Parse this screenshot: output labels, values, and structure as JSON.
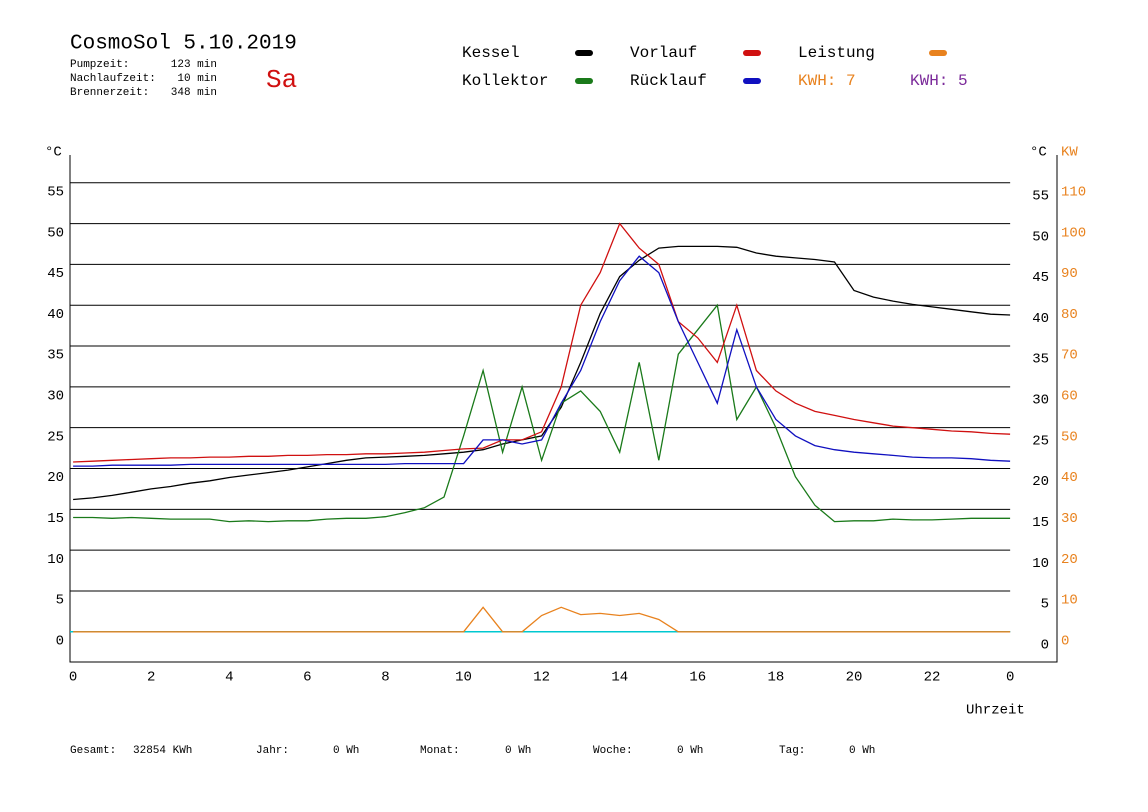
{
  "header": {
    "title": "CosmoSol 5.10.2019",
    "day": "Sa",
    "stats": [
      {
        "label": "Pumpzeit:",
        "value": "123 min"
      },
      {
        "label": "Nachlaufzeit:",
        "value": "10 min"
      },
      {
        "label": "Brennerzeit:",
        "value": "348 min"
      }
    ]
  },
  "chart_data": {
    "type": "line",
    "ylabel": "°C",
    "y2label_left": "°C",
    "y2label": "KW",
    "xlabel": "Uhrzeit",
    "annotations": [
      {
        "text": "KWH: 7",
        "color": "#e8821e"
      },
      {
        "text": "KWH: 5",
        "color": "#7b2a9a"
      }
    ],
    "x": [
      0,
      0.5,
      1,
      1.5,
      2,
      2.5,
      3,
      3.5,
      4,
      4.5,
      5,
      5.5,
      6,
      6.5,
      7,
      7.5,
      8,
      8.5,
      9,
      9.5,
      10,
      10.5,
      11,
      11.5,
      12,
      12.5,
      13,
      13.5,
      14,
      14.5,
      15,
      15.5,
      16,
      16.5,
      17,
      17.5,
      18,
      18.5,
      19,
      19.5,
      20,
      20.5,
      21,
      21.5,
      22,
      22.5,
      23,
      23.5,
      24
    ],
    "xlim": [
      -0.08,
      25.2
    ],
    "xticks": [
      0,
      2,
      4,
      6,
      8,
      10,
      12,
      14,
      16,
      18,
      20,
      22,
      {
        "value": 24,
        "label": "0"
      }
    ],
    "ylim": [
      -3.7,
      58.4
    ],
    "yticks": [
      0,
      5,
      10,
      15,
      20,
      25,
      30,
      35,
      40,
      45,
      50,
      55
    ],
    "y2lim": [
      -7.4,
      116.8
    ],
    "y2ticks": [
      0,
      10,
      20,
      30,
      40,
      50,
      60,
      70,
      80,
      90,
      100,
      110
    ],
    "grid": true,
    "series": [
      {
        "name": "Kessel",
        "color": "#000000",
        "values": [
          16.2,
          16.4,
          16.7,
          17.1,
          17.5,
          17.8,
          18.2,
          18.5,
          18.9,
          19.2,
          19.5,
          19.8,
          20.2,
          20.6,
          21.0,
          21.3,
          21.4,
          21.5,
          21.6,
          21.8,
          22.0,
          22.3,
          23.0,
          23.5,
          24.0,
          27.5,
          33.0,
          39.0,
          43.5,
          45.5,
          47.0,
          47.2,
          47.2,
          47.2,
          47.1,
          46.4,
          46.0,
          45.8,
          45.6,
          45.3,
          41.8,
          41.0,
          40.5,
          40.1,
          39.8,
          39.5,
          39.2,
          38.9,
          38.8
        ]
      },
      {
        "name": "Kollektor",
        "color": "#1a7a1a",
        "values": [
          14.0,
          14.0,
          13.9,
          14.0,
          13.9,
          13.8,
          13.8,
          13.8,
          13.5,
          13.6,
          13.5,
          13.6,
          13.6,
          13.8,
          13.9,
          13.9,
          14.1,
          14.6,
          15.2,
          16.5,
          24.0,
          32.0,
          22.0,
          30.0,
          21.0,
          28.0,
          29.5,
          27.0,
          22.0,
          33.0,
          21.0,
          34.0,
          37.0,
          40.0,
          26.0,
          30.0,
          25.0,
          19.0,
          15.5,
          13.5,
          13.6,
          13.6,
          13.8,
          13.7,
          13.7,
          13.8,
          13.9,
          13.9,
          13.9
        ]
      },
      {
        "name": "Vorlauf",
        "color": "#d01010",
        "values": [
          20.8,
          20.9,
          21.0,
          21.1,
          21.2,
          21.3,
          21.3,
          21.4,
          21.4,
          21.5,
          21.5,
          21.6,
          21.6,
          21.7,
          21.7,
          21.8,
          21.8,
          21.9,
          22.0,
          22.2,
          22.4,
          22.5,
          23.5,
          23.5,
          24.5,
          30.0,
          40.0,
          44.0,
          50.0,
          47.0,
          45.0,
          38.0,
          36.0,
          33.0,
          40.0,
          32.0,
          29.5,
          28.0,
          27.0,
          26.5,
          26.0,
          25.6,
          25.2,
          25.0,
          24.8,
          24.6,
          24.5,
          24.3,
          24.2
        ]
      },
      {
        "name": "Rücklauf",
        "color": "#1010c0",
        "values": [
          20.3,
          20.3,
          20.4,
          20.4,
          20.4,
          20.4,
          20.5,
          20.5,
          20.5,
          20.5,
          20.5,
          20.5,
          20.5,
          20.5,
          20.5,
          20.5,
          20.5,
          20.6,
          20.6,
          20.6,
          20.6,
          23.5,
          23.5,
          23.0,
          23.5,
          28.0,
          32.0,
          38.0,
          43.0,
          46.0,
          44.0,
          38.0,
          33.0,
          28.0,
          37.0,
          30.0,
          26.0,
          24.0,
          22.8,
          22.3,
          22.0,
          21.8,
          21.6,
          21.4,
          21.3,
          21.3,
          21.2,
          21.0,
          20.9
        ]
      },
      {
        "name": "Leistung",
        "color": "#e8821e",
        "axis": "y2",
        "values": [
          0,
          0,
          0,
          0,
          0,
          0,
          0,
          0,
          0,
          0,
          0,
          0,
          0,
          0,
          0,
          0,
          0,
          0,
          0,
          0,
          0,
          6,
          0,
          0,
          4,
          6,
          4.2,
          4.5,
          4.0,
          4.5,
          3.0,
          0,
          0,
          0,
          0,
          0,
          0,
          0,
          0,
          0,
          0,
          0,
          0,
          0,
          0,
          0,
          0,
          0,
          0
        ]
      }
    ]
  },
  "footer": [
    {
      "label": "Gesamt:",
      "value": "32854 KWh"
    },
    {
      "label": "Jahr:",
      "value": "0 Wh"
    },
    {
      "label": "Monat:",
      "value": "0 Wh"
    },
    {
      "label": "Woche:",
      "value": "0 Wh"
    },
    {
      "label": "Tag:",
      "value": "0 Wh"
    }
  ]
}
